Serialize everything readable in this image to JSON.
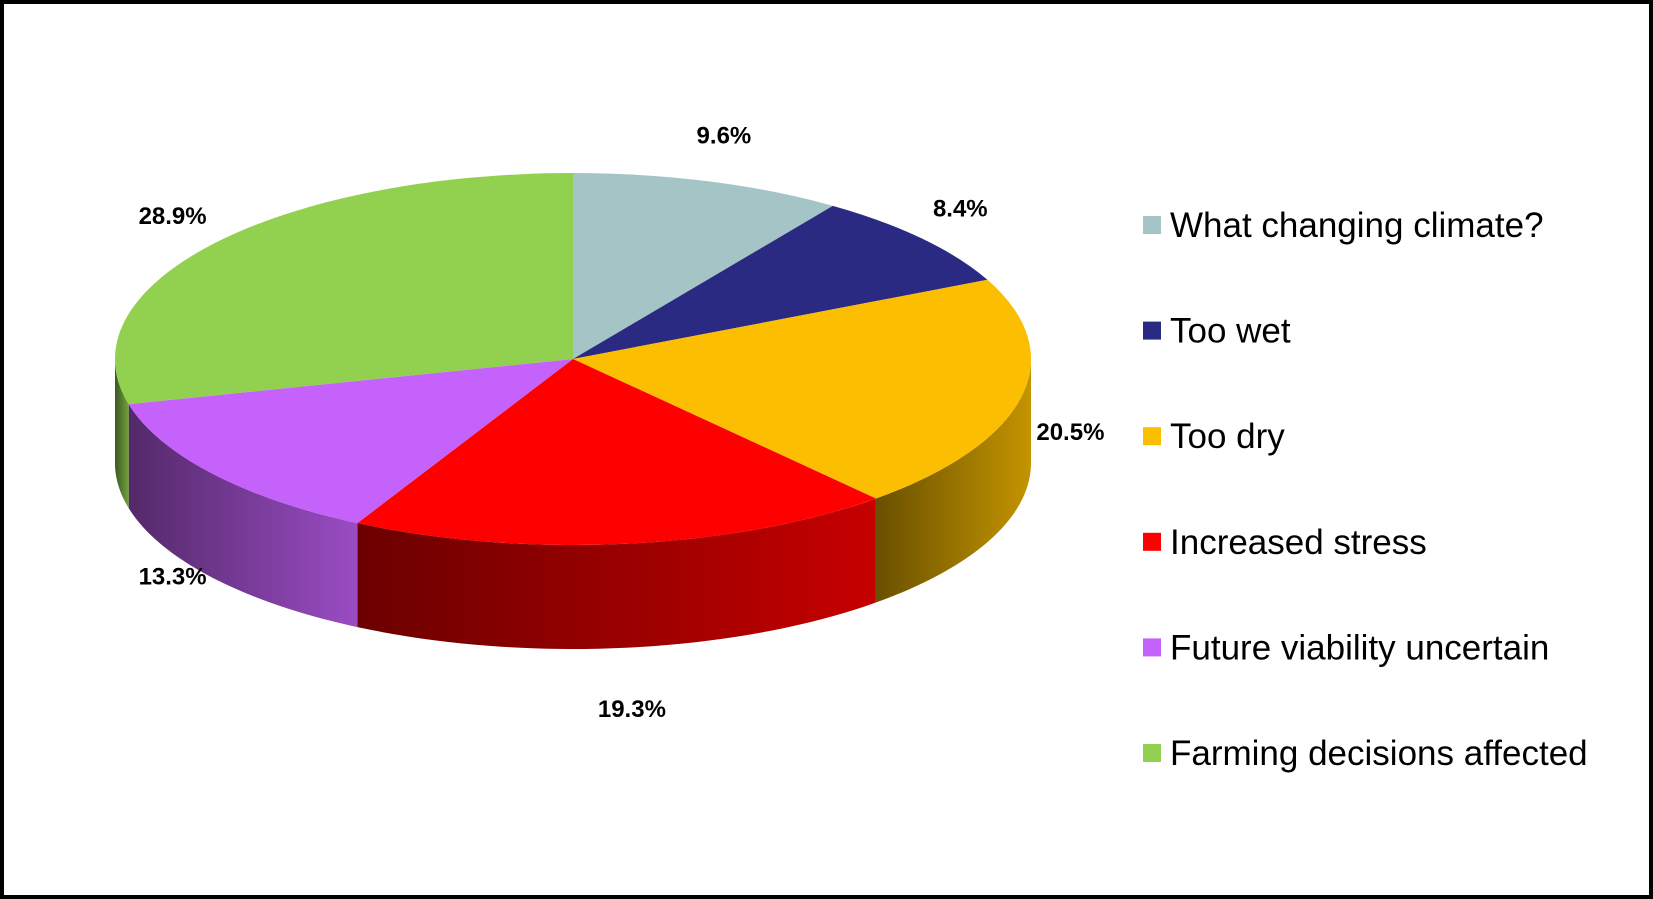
{
  "chart_data": {
    "type": "pie",
    "style": "3d",
    "title": "",
    "legend_position": "right",
    "start_angle_deg": 0,
    "direction": "clockwise",
    "slices": [
      {
        "label": "What changing climate?",
        "value": 9.6,
        "value_label": "9.6%",
        "color": "#A5C4C6"
      },
      {
        "label": "Too wet",
        "value": 8.4,
        "value_label": "8.4%",
        "color": "#2B2A83"
      },
      {
        "label": "Too dry",
        "value": 20.5,
        "value_label": "20.5%",
        "color": "#FBBE00"
      },
      {
        "label": "Increased stress",
        "value": 19.3,
        "value_label": "19.3%",
        "color": "#FE0000"
      },
      {
        "label": "Future viability uncertain",
        "value": 13.3,
        "value_label": "13.3%",
        "color": "#C562FB"
      },
      {
        "label": "Farming decisions affected",
        "value": 28.9,
        "value_label": "28.9%",
        "color": "#92D050"
      }
    ]
  }
}
